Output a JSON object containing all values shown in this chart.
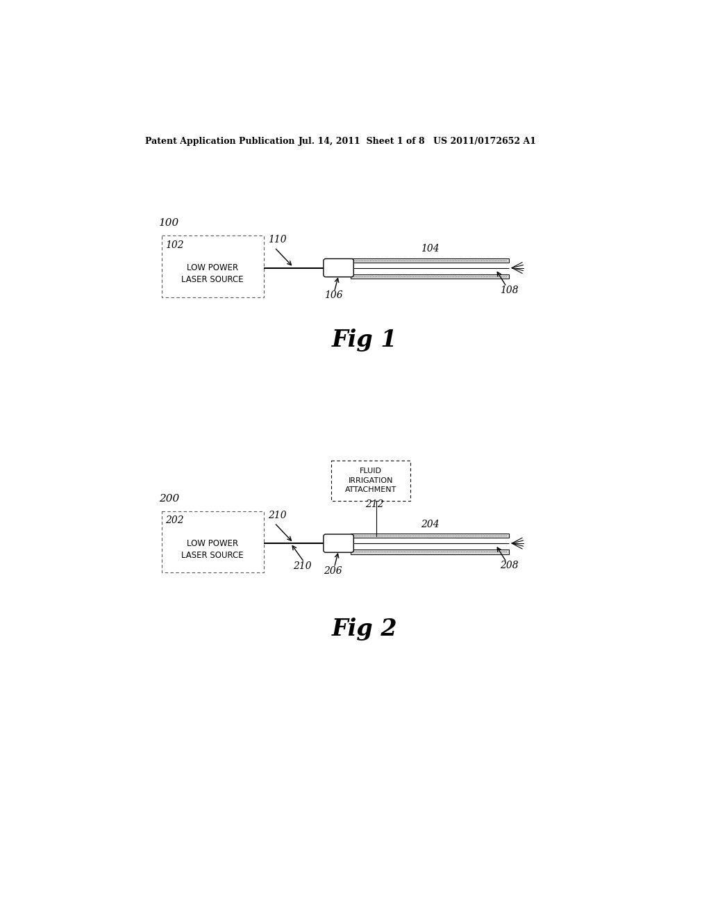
{
  "bg_color": "#ffffff",
  "header_left": "Patent Application Publication",
  "header_mid": "Jul. 14, 2011  Sheet 1 of 8",
  "header_right": "US 2011/0172652 A1",
  "fig1_label": "100",
  "fig1_title": "Fig 1",
  "fig1_box_label": "102",
  "fig1_box_text": "LOW POWER\nLASER SOURCE",
  "fig1_ref110": "110",
  "fig1_ref104": "104",
  "fig1_ref106": "106",
  "fig1_ref108": "108",
  "fig2_label": "200",
  "fig2_title": "Fig 2",
  "fig2_box_label": "202",
  "fig2_box_text": "LOW POWER\nLASER SOURCE",
  "fig2_fluid_label": "212",
  "fig2_fluid_text": "FLUID\nIRRIGATION\nATTACHMENT",
  "fig2_ref204": "204",
  "fig2_ref210": "210",
  "fig2_ref206": "206",
  "fig2_ref208": "208"
}
